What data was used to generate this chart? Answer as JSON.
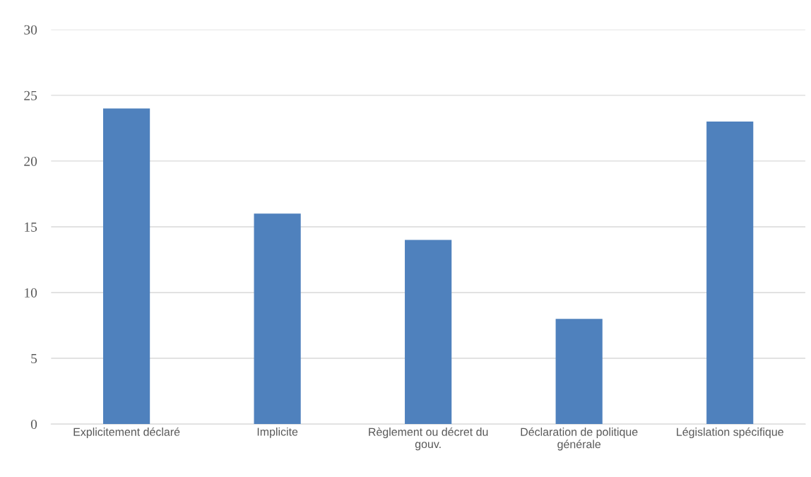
{
  "chart_data": {
    "type": "bar",
    "categories": [
      "Explicitement déclaré",
      "Implicite",
      "Règlement ou décret du gouv.",
      "Déclaration de politique générale",
      "Législation spécifique"
    ],
    "values": [
      24,
      16,
      14,
      8,
      23
    ],
    "color": "#4f81bd",
    "ylim": [
      0,
      30
    ],
    "yticks": [
      0,
      5,
      10,
      15,
      20,
      25,
      30
    ],
    "grid": "y",
    "legend": false
  }
}
